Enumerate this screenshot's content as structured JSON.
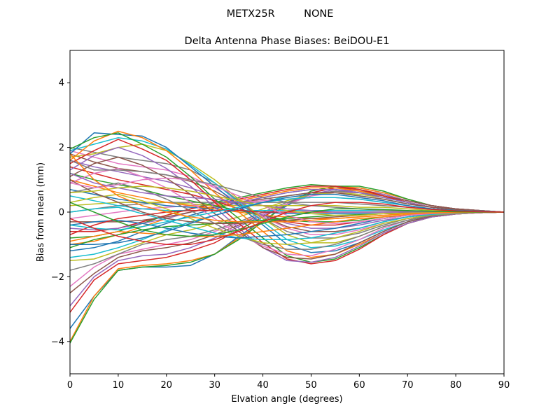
{
  "chart_data": {
    "type": "line",
    "suptitle": "METX25R         NONE",
    "title": "Delta Antenna Phase Biases: BeiDOU-E1",
    "xlabel": "Elvation angle (degrees)",
    "ylabel": "Bias from mean (mm)",
    "xlim": [
      0,
      90
    ],
    "ylim": [
      -5,
      5
    ],
    "xticks": [
      "0",
      "10",
      "20",
      "30",
      "40",
      "50",
      "60",
      "70",
      "80",
      "90"
    ],
    "yticks": [
      "-4",
      "-2",
      "0",
      "2",
      "4"
    ],
    "grid": false,
    "legend": "none",
    "x": [
      0,
      5,
      10,
      15,
      20,
      25,
      30,
      35,
      40,
      45,
      50,
      55,
      60,
      65,
      70,
      75,
      80,
      85,
      90
    ],
    "colors": [
      "#1f77b4",
      "#ff7f0e",
      "#2ca02c",
      "#d62728",
      "#9467bd",
      "#8c564b",
      "#e377c2",
      "#7f7f7f",
      "#bcbd22",
      "#17becf"
    ],
    "series": [
      {
        "values": [
          -3.6,
          -2.6,
          -1.8,
          -1.7,
          -1.7,
          -1.65,
          -1.3,
          -0.75,
          -0.25,
          0.2,
          0.6,
          0.75,
          0.75,
          0.6,
          0.4,
          0.2,
          0.1,
          0.05,
          0
        ]
      },
      {
        "values": [
          -4.0,
          -2.6,
          -1.75,
          -1.65,
          -1.6,
          -1.5,
          -1.3,
          -0.8,
          -0.3,
          0.25,
          0.65,
          0.8,
          0.75,
          0.6,
          0.4,
          0.2,
          0.1,
          0.05,
          0
        ]
      },
      {
        "values": [
          -4.05,
          -2.7,
          -1.8,
          -1.7,
          -1.65,
          -1.55,
          -1.3,
          -0.85,
          -0.3,
          0.25,
          0.65,
          0.8,
          0.8,
          0.65,
          0.4,
          0.2,
          0.1,
          0.05,
          0
        ]
      },
      {
        "values": [
          -3.1,
          -2.1,
          -1.6,
          -1.5,
          -1.4,
          -1.2,
          -0.95,
          -0.55,
          -0.15,
          0.25,
          0.6,
          0.75,
          0.7,
          0.55,
          0.35,
          0.2,
          0.1,
          0.05,
          0
        ]
      },
      {
        "values": [
          -2.9,
          -2.0,
          -1.5,
          -1.35,
          -1.3,
          -1.1,
          -0.8,
          -0.45,
          -0.1,
          0.25,
          0.55,
          0.7,
          0.65,
          0.55,
          0.35,
          0.2,
          0.1,
          0.05,
          0
        ]
      },
      {
        "values": [
          -2.5,
          -1.9,
          -1.4,
          -1.2,
          -1.1,
          -0.95,
          -0.7,
          -0.4,
          -0.05,
          0.25,
          0.5,
          0.65,
          0.6,
          0.5,
          0.35,
          0.2,
          0.1,
          0.05,
          0
        ]
      },
      {
        "values": [
          -2.3,
          -1.7,
          -1.3,
          -1.15,
          -1.0,
          -0.85,
          -0.6,
          -0.35,
          -0.05,
          0.25,
          0.5,
          0.6,
          0.6,
          0.5,
          0.3,
          0.15,
          0.08,
          0.04,
          0
        ]
      },
      {
        "values": [
          -1.8,
          -1.6,
          -1.3,
          -1.0,
          -0.85,
          -0.75,
          -0.55,
          -0.3,
          0.0,
          0.3,
          0.55,
          0.65,
          0.6,
          0.5,
          0.3,
          0.15,
          0.08,
          0.04,
          0
        ]
      },
      {
        "values": [
          -1.5,
          -1.45,
          -1.2,
          -0.95,
          -0.7,
          -0.55,
          -0.35,
          -0.15,
          0.1,
          0.35,
          0.55,
          0.6,
          0.55,
          0.45,
          0.3,
          0.15,
          0.08,
          0.04,
          0
        ]
      },
      {
        "values": [
          -1.4,
          -1.3,
          -1.1,
          -0.85,
          -0.55,
          -0.3,
          -0.1,
          0.1,
          0.3,
          0.5,
          0.6,
          0.6,
          0.5,
          0.4,
          0.25,
          0.15,
          0.08,
          0.04,
          0
        ]
      },
      {
        "values": [
          -1.2,
          -1.1,
          -0.9,
          -0.6,
          -0.35,
          -0.1,
          0.1,
          0.3,
          0.45,
          0.6,
          0.7,
          0.7,
          0.6,
          0.45,
          0.3,
          0.15,
          0.08,
          0.04,
          0
        ]
      },
      {
        "values": [
          -1.0,
          -0.9,
          -0.7,
          -0.45,
          -0.2,
          0.0,
          0.2,
          0.35,
          0.5,
          0.65,
          0.75,
          0.75,
          0.65,
          0.5,
          0.3,
          0.15,
          0.08,
          0.04,
          0
        ]
      },
      {
        "values": [
          -0.8,
          -0.75,
          -0.6,
          -0.35,
          -0.1,
          0.1,
          0.3,
          0.45,
          0.6,
          0.75,
          0.85,
          0.8,
          0.7,
          0.5,
          0.3,
          0.15,
          0.08,
          0.04,
          0
        ]
      },
      {
        "values": [
          -0.6,
          -0.6,
          -0.5,
          -0.3,
          -0.1,
          0.1,
          0.25,
          0.4,
          0.55,
          0.7,
          0.8,
          0.8,
          0.7,
          0.5,
          0.3,
          0.15,
          0.08,
          0.04,
          0
        ]
      },
      {
        "values": [
          -0.5,
          -0.55,
          -0.5,
          -0.35,
          -0.2,
          0.0,
          0.15,
          0.3,
          0.45,
          0.6,
          0.7,
          0.7,
          0.6,
          0.45,
          0.3,
          0.15,
          0.08,
          0.04,
          0
        ]
      },
      {
        "values": [
          -0.3,
          -0.3,
          -0.3,
          -0.25,
          -0.15,
          0.0,
          0.15,
          0.3,
          0.4,
          0.5,
          0.6,
          0.6,
          0.5,
          0.4,
          0.25,
          0.15,
          0.08,
          0.04,
          0
        ]
      },
      {
        "values": [
          -0.2,
          -0.1,
          0.0,
          0.1,
          0.15,
          0.2,
          0.25,
          0.3,
          0.35,
          0.4,
          0.45,
          0.45,
          0.4,
          0.3,
          0.2,
          0.1,
          0.05,
          0.02,
          0
        ]
      },
      {
        "values": [
          0.0,
          0.1,
          0.2,
          0.25,
          0.3,
          0.3,
          0.3,
          0.3,
          0.3,
          0.3,
          0.3,
          0.3,
          0.25,
          0.2,
          0.15,
          0.1,
          0.05,
          0.02,
          0
        ]
      },
      {
        "values": [
          0.2,
          0.25,
          0.3,
          0.3,
          0.3,
          0.25,
          0.2,
          0.2,
          0.2,
          0.2,
          0.2,
          0.2,
          0.15,
          0.15,
          0.1,
          0.05,
          0.03,
          0.01,
          0
        ]
      },
      {
        "values": [
          0.5,
          0.35,
          0.2,
          0.1,
          0.05,
          0.05,
          0.05,
          0.05,
          0.05,
          0.05,
          0.05,
          0.05,
          0.05,
          0.05,
          0.03,
          0.02,
          0.01,
          0.0,
          0
        ]
      },
      {
        "values": [
          0.7,
          0.55,
          0.4,
          0.3,
          0.2,
          0.15,
          0.1,
          0.05,
          0.0,
          -0.05,
          -0.05,
          -0.05,
          -0.05,
          -0.05,
          -0.03,
          -0.02,
          -0.01,
          0.0,
          0
        ]
      },
      {
        "values": [
          1.0,
          0.8,
          0.6,
          0.45,
          0.3,
          0.2,
          0.1,
          0.0,
          -0.1,
          -0.15,
          -0.2,
          -0.2,
          -0.15,
          -0.1,
          -0.05,
          -0.03,
          -0.02,
          -0.01,
          0
        ]
      },
      {
        "values": [
          1.2,
          1.0,
          0.85,
          0.7,
          0.5,
          0.35,
          0.2,
          0.05,
          -0.1,
          -0.25,
          -0.3,
          -0.3,
          -0.25,
          -0.15,
          -0.1,
          -0.05,
          -0.03,
          -0.01,
          0
        ]
      },
      {
        "values": [
          1.4,
          1.2,
          1.0,
          0.85,
          0.7,
          0.55,
          0.35,
          0.1,
          -0.1,
          -0.3,
          -0.4,
          -0.4,
          -0.3,
          -0.2,
          -0.1,
          -0.05,
          -0.03,
          -0.01,
          0
        ]
      },
      {
        "values": [
          1.6,
          1.4,
          1.25,
          1.1,
          0.95,
          0.75,
          0.5,
          0.2,
          -0.1,
          -0.35,
          -0.5,
          -0.5,
          -0.4,
          -0.25,
          -0.15,
          -0.07,
          -0.03,
          -0.01,
          0
        ]
      },
      {
        "values": [
          1.8,
          1.55,
          1.35,
          1.25,
          1.15,
          0.95,
          0.65,
          0.25,
          -0.15,
          -0.45,
          -0.6,
          -0.6,
          -0.5,
          -0.3,
          -0.15,
          -0.07,
          -0.03,
          -0.01,
          0
        ]
      },
      {
        "values": [
          1.9,
          1.7,
          1.5,
          1.4,
          1.3,
          1.1,
          0.75,
          0.3,
          -0.15,
          -0.5,
          -0.7,
          -0.7,
          -0.55,
          -0.35,
          -0.2,
          -0.1,
          -0.05,
          -0.02,
          0
        ]
      },
      {
        "values": [
          2.0,
          1.85,
          1.7,
          1.6,
          1.5,
          1.3,
          0.9,
          0.35,
          -0.2,
          -0.6,
          -0.8,
          -0.8,
          -0.65,
          -0.4,
          -0.2,
          -0.1,
          -0.05,
          -0.02,
          0
        ]
      },
      {
        "values": [
          1.7,
          1.8,
          2.0,
          2.1,
          1.9,
          1.5,
          1.0,
          0.4,
          -0.2,
          -0.7,
          -0.95,
          -0.95,
          -0.75,
          -0.45,
          -0.25,
          -0.1,
          -0.05,
          -0.02,
          0
        ]
      },
      {
        "values": [
          1.9,
          2.1,
          2.3,
          2.2,
          1.95,
          1.45,
          0.9,
          0.3,
          -0.3,
          -0.85,
          -1.1,
          -1.05,
          -0.85,
          -0.55,
          -0.3,
          -0.12,
          -0.05,
          -0.02,
          0
        ]
      },
      {
        "values": [
          1.8,
          2.45,
          2.4,
          2.35,
          2.0,
          1.4,
          0.8,
          0.2,
          -0.4,
          -1.0,
          -1.25,
          -1.2,
          -0.95,
          -0.6,
          -0.3,
          -0.12,
          -0.05,
          -0.02,
          0
        ]
      },
      {
        "values": [
          1.6,
          2.2,
          2.5,
          2.3,
          1.9,
          1.3,
          0.6,
          0.0,
          -0.6,
          -1.2,
          -1.4,
          -1.3,
          -1.0,
          -0.65,
          -0.35,
          -0.15,
          -0.06,
          -0.02,
          0
        ]
      },
      {
        "values": [
          1.95,
          2.3,
          2.45,
          2.1,
          1.7,
          1.1,
          0.4,
          -0.2,
          -0.8,
          -1.35,
          -1.55,
          -1.45,
          -1.1,
          -0.7,
          -0.35,
          -0.15,
          -0.06,
          -0.02,
          0
        ]
      },
      {
        "values": [
          1.5,
          1.9,
          2.25,
          1.95,
          1.6,
          1.0,
          0.3,
          -0.35,
          -0.95,
          -1.45,
          -1.6,
          -1.5,
          -1.15,
          -0.7,
          -0.35,
          -0.15,
          -0.06,
          -0.02,
          0
        ]
      },
      {
        "values": [
          1.3,
          1.75,
          2.0,
          1.75,
          1.35,
          0.8,
          0.15,
          -0.5,
          -1.1,
          -1.5,
          -1.55,
          -1.4,
          -1.05,
          -0.65,
          -0.35,
          -0.15,
          -0.06,
          -0.02,
          0
        ]
      },
      {
        "values": [
          1.1,
          1.5,
          1.7,
          1.45,
          1.05,
          0.55,
          -0.05,
          -0.6,
          -1.1,
          -1.4,
          -1.45,
          -1.3,
          -0.95,
          -0.6,
          -0.3,
          -0.12,
          -0.05,
          -0.02,
          0
        ]
      },
      {
        "values": [
          0.9,
          1.2,
          1.35,
          1.1,
          0.75,
          0.3,
          -0.2,
          -0.7,
          -1.05,
          -1.3,
          -1.35,
          -1.15,
          -0.85,
          -0.5,
          -0.25,
          -0.1,
          -0.05,
          -0.02,
          0
        ]
      },
      {
        "values": [
          0.6,
          0.75,
          0.9,
          0.7,
          0.4,
          0.05,
          -0.35,
          -0.75,
          -1.0,
          -1.15,
          -1.15,
          -1.0,
          -0.75,
          -0.45,
          -0.25,
          -0.1,
          -0.05,
          -0.02,
          0
        ]
      },
      {
        "values": [
          0.3,
          0.45,
          0.55,
          0.35,
          0.1,
          -0.2,
          -0.5,
          -0.75,
          -0.95,
          -1.0,
          -0.95,
          -0.8,
          -0.6,
          -0.35,
          -0.2,
          -0.08,
          -0.04,
          -0.01,
          0
        ]
      },
      {
        "values": [
          0.0,
          0.1,
          0.15,
          -0.05,
          -0.25,
          -0.45,
          -0.65,
          -0.8,
          -0.85,
          -0.85,
          -0.8,
          -0.65,
          -0.5,
          -0.3,
          -0.15,
          -0.07,
          -0.03,
          -0.01,
          0
        ]
      },
      {
        "values": [
          -0.4,
          -0.3,
          -0.25,
          -0.35,
          -0.5,
          -0.65,
          -0.75,
          -0.8,
          -0.75,
          -0.7,
          -0.6,
          -0.5,
          -0.35,
          -0.2,
          -0.1,
          -0.05,
          -0.02,
          -0.01,
          0
        ]
      },
      {
        "values": [
          -0.9,
          -0.75,
          -0.6,
          -0.65,
          -0.7,
          -0.75,
          -0.75,
          -0.7,
          -0.6,
          -0.5,
          -0.4,
          -0.3,
          -0.2,
          -0.15,
          -0.08,
          -0.04,
          -0.02,
          -0.01,
          0
        ]
      },
      {
        "values": [
          -1.1,
          -0.85,
          -0.7,
          -0.55,
          -0.45,
          -0.4,
          -0.35,
          -0.3,
          -0.25,
          -0.2,
          -0.15,
          -0.1,
          -0.08,
          -0.05,
          -0.03,
          -0.02,
          -0.01,
          0.0,
          0
        ]
      },
      {
        "values": [
          -0.7,
          -0.4,
          -0.2,
          -0.1,
          0.0,
          0.05,
          0.05,
          0.05,
          0.0,
          0.0,
          0.0,
          0.0,
          0.0,
          0.0,
          0.0,
          0.0,
          0.0,
          0.0,
          0
        ]
      },
      {
        "values": [
          1.2,
          0.9,
          0.75,
          0.6,
          0.5,
          0.45,
          0.4,
          0.3,
          0.2,
          0.1,
          0.05,
          0.0,
          0.0,
          0.0,
          0.0,
          0.0,
          0.0,
          0.0,
          0
        ]
      },
      {
        "values": [
          1.0,
          0.6,
          0.3,
          0.0,
          -0.2,
          -0.3,
          -0.35,
          -0.35,
          -0.3,
          -0.25,
          -0.2,
          -0.15,
          -0.1,
          -0.05,
          -0.03,
          -0.02,
          -0.01,
          0.0,
          0
        ]
      },
      {
        "values": [
          0.9,
          0.75,
          0.85,
          1.0,
          1.05,
          1.0,
          0.8,
          0.5,
          0.2,
          -0.1,
          -0.3,
          -0.35,
          -0.3,
          -0.2,
          -0.1,
          -0.05,
          -0.02,
          -0.01,
          0
        ]
      },
      {
        "values": [
          1.6,
          1.3,
          1.3,
          1.25,
          1.15,
          1.0,
          0.85,
          0.65,
          0.45,
          0.3,
          0.2,
          0.15,
          0.1,
          0.05,
          0.03,
          0.02,
          0.01,
          0.0,
          0
        ]
      },
      {
        "values": [
          0.6,
          0.65,
          0.75,
          0.8,
          0.75,
          0.65,
          0.5,
          0.35,
          0.2,
          0.05,
          -0.05,
          -0.1,
          -0.1,
          -0.05,
          -0.03,
          -0.02,
          -0.01,
          0.0,
          0
        ]
      },
      {
        "values": [
          -0.4,
          -0.5,
          -0.55,
          -0.45,
          -0.3,
          -0.15,
          0.0,
          0.15,
          0.3,
          0.4,
          0.45,
          0.45,
          0.4,
          0.3,
          0.2,
          0.1,
          0.05,
          0.02,
          0
        ]
      },
      {
        "values": [
          -1.0,
          -1.0,
          -0.95,
          -0.8,
          -0.6,
          -0.35,
          -0.1,
          0.1,
          0.3,
          0.45,
          0.55,
          0.55,
          0.45,
          0.35,
          0.2,
          0.1,
          0.05,
          0.02,
          0
        ]
      },
      {
        "values": [
          1.8,
          1.0,
          0.5,
          0.2,
          0.0,
          -0.15,
          -0.25,
          -0.3,
          -0.3,
          -0.3,
          -0.25,
          -0.2,
          -0.15,
          -0.1,
          -0.05,
          -0.03,
          -0.01,
          0.0,
          0
        ]
      },
      {
        "values": [
          0.3,
          0.0,
          -0.3,
          -0.55,
          -0.7,
          -0.75,
          -0.7,
          -0.55,
          -0.35,
          -0.15,
          0.0,
          0.1,
          0.1,
          0.08,
          0.05,
          0.03,
          0.01,
          0.0,
          0
        ]
      },
      {
        "values": [
          -0.2,
          -0.5,
          -0.75,
          -0.9,
          -1.0,
          -1.0,
          -0.85,
          -0.6,
          -0.3,
          0.0,
          0.2,
          0.3,
          0.3,
          0.25,
          0.15,
          0.08,
          0.04,
          0.01,
          0
        ]
      }
    ]
  }
}
